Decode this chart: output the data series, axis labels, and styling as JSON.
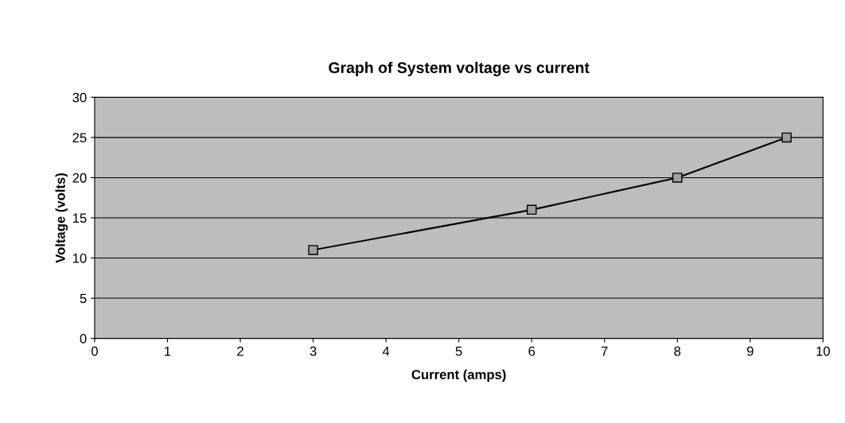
{
  "chart_data": {
    "type": "line",
    "title": "Graph of System voltage vs current",
    "xlabel": "Current (amps)",
    "ylabel": "Voltage (volts)",
    "series": [
      {
        "color": "#000000",
        "x": [
          3,
          6,
          8,
          9.5
        ],
        "values": [
          11,
          16,
          20,
          25
        ]
      }
    ],
    "xlim": [
      0,
      10
    ],
    "xticks": [
      0,
      1,
      2,
      3,
      4,
      5,
      6,
      7,
      8,
      9,
      10
    ],
    "ylim": [
      0,
      30
    ],
    "yticks": [
      0,
      5,
      10,
      15,
      20,
      25,
      30
    ],
    "grid": "y",
    "marker": "square",
    "line_style": "solid"
  }
}
